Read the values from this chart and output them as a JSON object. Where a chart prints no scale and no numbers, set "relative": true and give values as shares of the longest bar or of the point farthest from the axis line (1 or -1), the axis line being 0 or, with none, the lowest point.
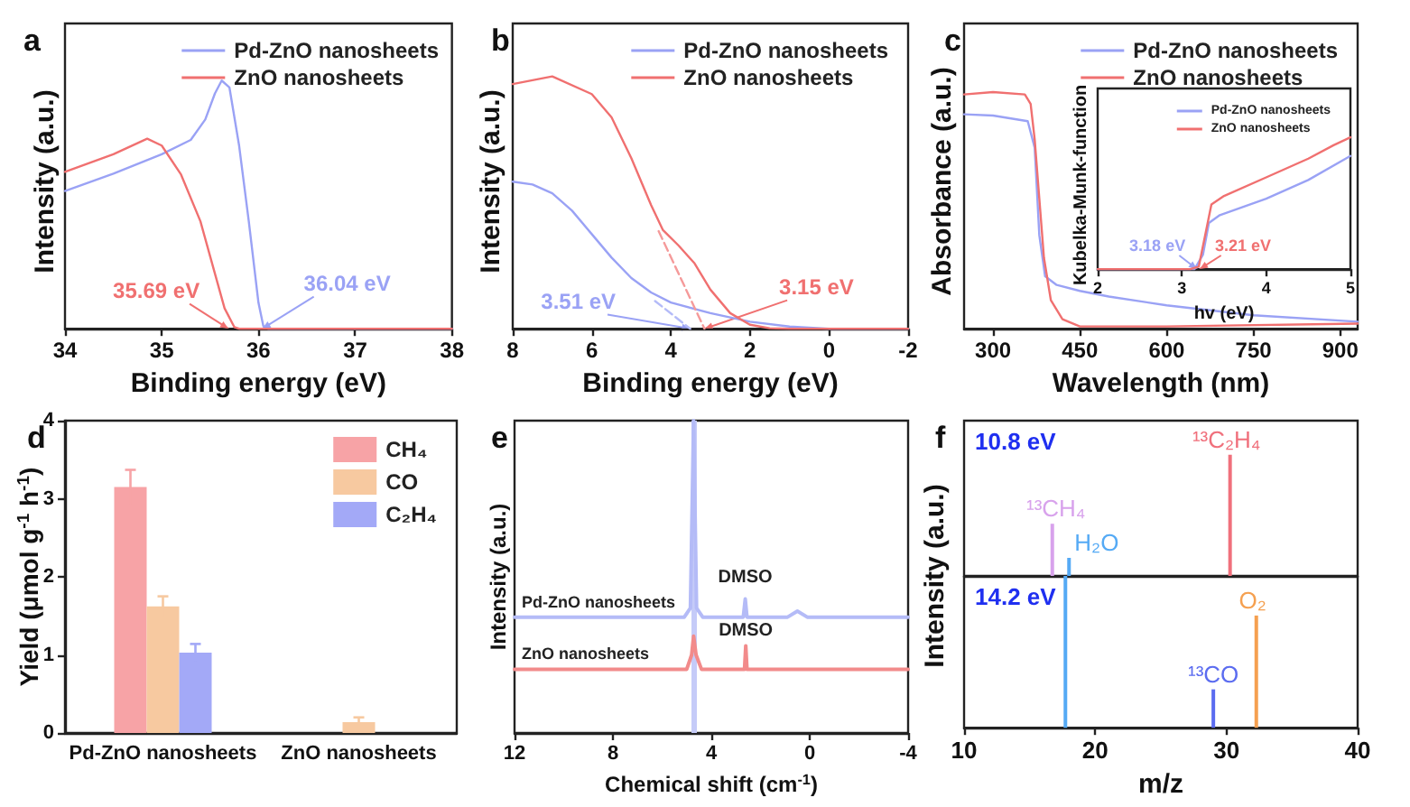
{
  "chart_data": [
    {
      "type": "line",
      "title": "a",
      "xlabel": "Binding energy (eV)",
      "ylabel": "Intensity (a.u.)",
      "relative": true,
      "xlim": [
        34,
        38
      ],
      "xticks": [
        34,
        35,
        36,
        37,
        38
      ],
      "legend": "top right",
      "marker": "none",
      "line_style": "solid",
      "series": [
        {
          "name": "Pd-ZnO nanosheets",
          "color": "#9aa2f5",
          "x": [
            34,
            34.5,
            35,
            35.3,
            35.45,
            35.55,
            35.62,
            35.7,
            35.8,
            35.9,
            36,
            36.05,
            36.1,
            38
          ],
          "values": [
            0.555,
            0.625,
            0.703,
            0.761,
            0.843,
            0.948,
            1,
            0.972,
            0.738,
            0.433,
            0.105,
            0.012,
            0,
            0
          ]
        },
        {
          "name": "ZnO nanosheets",
          "color": "#f07070",
          "x": [
            34,
            34.5,
            34.85,
            35,
            35.2,
            35.4,
            35.55,
            35.65,
            35.75,
            35.8,
            38
          ],
          "values": [
            0.632,
            0.703,
            0.766,
            0.738,
            0.621,
            0.433,
            0.222,
            0.082,
            0.007,
            0,
            0
          ]
        }
      ],
      "annotations": [
        {
          "text": "36.04 eV",
          "x": 36.04,
          "y": 0
        },
        {
          "text": "35.69 eV",
          "x": 35.69,
          "y": 0
        }
      ]
    },
    {
      "type": "line",
      "title": "b",
      "xlabel": "Binding energy (eV)",
      "ylabel": "Intensity (a.u.)",
      "relative": true,
      "xlim": [
        8,
        -2
      ],
      "xticks": [
        8,
        6,
        4,
        2,
        0,
        -2
      ],
      "legend": "top right",
      "marker": "none",
      "line_style": "solid",
      "series": [
        {
          "name": "Pd-ZnO nanosheets",
          "color": "#9aa2f5",
          "x": [
            8,
            7.5,
            7,
            6.5,
            6,
            5.5,
            5,
            4.5,
            4,
            3,
            2,
            1,
            0,
            -2
          ],
          "values": [
            0.583,
            0.572,
            0.537,
            0.468,
            0.375,
            0.282,
            0.201,
            0.144,
            0.104,
            0.062,
            0.028,
            0.009,
            0,
            0
          ]
        },
        {
          "name": "ZnO nanosheets",
          "color": "#f07070",
          "x": [
            8,
            7,
            6,
            5.5,
            5,
            4.5,
            4.2,
            3.8,
            3.4,
            3,
            2.5,
            2,
            1.5,
            1,
            -2
          ],
          "values": [
            0.97,
            1,
            0.93,
            0.838,
            0.676,
            0.49,
            0.391,
            0.329,
            0.259,
            0.155,
            0.062,
            0.016,
            0.002,
            0,
            0
          ]
        },
        {
          "color": "#b4bbf8",
          "line_style": "dashed",
          "x": [
            4.4,
            3.51
          ],
          "values": [
            0.11,
            0
          ]
        },
        {
          "color": "#f59a9a",
          "line_style": "dashed",
          "x": [
            4.31,
            3.15
          ],
          "values": [
            0.387,
            0
          ]
        }
      ],
      "annotations": [
        {
          "text": "3.51 eV",
          "x": 3.51,
          "y": 0
        },
        {
          "text": "3.15 eV",
          "x": 3.15,
          "y": 0
        }
      ]
    },
    {
      "type": "line",
      "title": "c",
      "xlabel": "Wavelength (nm)",
      "ylabel": "Absorbance (a.u.)",
      "relative": true,
      "xlim": [
        250,
        930
      ],
      "xticks": [
        300,
        450,
        600,
        750,
        900
      ],
      "legend": "top right",
      "marker": "none",
      "line_style": "solid",
      "series": [
        {
          "name": "Pd-ZnO nanosheets",
          "color": "#9aa2f5",
          "x": [
            250,
            300,
            360,
            372,
            380,
            390,
            410,
            450,
            500,
            600,
            750,
            930
          ],
          "values": [
            0.906,
            0.901,
            0.877,
            0.765,
            0.395,
            0.222,
            0.185,
            0.16,
            0.136,
            0.099,
            0.057,
            0.03
          ]
        },
        {
          "name": "ZnO nanosheets",
          "color": "#f07070",
          "x": [
            250,
            300,
            355,
            365,
            372,
            380,
            388,
            400,
            420,
            450,
            600,
            930
          ],
          "values": [
            0.99,
            1,
            0.99,
            0.95,
            0.8,
            0.55,
            0.3,
            0.12,
            0.04,
            0.01,
            0.01,
            0.022
          ]
        }
      ]
    },
    {
      "type": "line",
      "xlabel": "hv (eV)",
      "ylabel": "Kubelka-Munk-function",
      "relative": true,
      "xlim": [
        2,
        5
      ],
      "xticks": [
        2,
        3,
        4,
        5
      ],
      "legend": "top right",
      "marker": "none",
      "line_style": "solid",
      "series": [
        {
          "name": "Pd-ZnO nanosheets",
          "color": "#9aa2f5",
          "x": [
            2,
            3.15,
            3.25,
            3.32,
            3.45,
            4,
            4.5,
            5
          ],
          "values": [
            0,
            0,
            0.11,
            0.35,
            0.41,
            0.534,
            0.676,
            0.858
          ]
        },
        {
          "name": "ZnO nanosheets",
          "color": "#f07070",
          "x": [
            2,
            3.1,
            3.2,
            3.28,
            3.35,
            3.5,
            4,
            4.5,
            4.8,
            5
          ],
          "values": [
            0,
            0,
            0.02,
            0.27,
            0.49,
            0.555,
            0.696,
            0.838,
            0.94,
            1
          ]
        }
      ],
      "annotations": [
        {
          "text": "3.18 eV",
          "x": 3.18,
          "y": 0
        },
        {
          "text": "3.21 eV",
          "x": 3.21,
          "y": 0
        }
      ]
    },
    {
      "type": "bar",
      "title": "d",
      "ylabel": "Yield (μmol g$^{-1}$ h$^{-1}$)",
      "categories": [
        "Pd-ZnO nanosheets",
        "ZnO nanosheets"
      ],
      "ylim": [
        0,
        4
      ],
      "yticks": [
        0,
        1,
        2,
        3,
        4
      ],
      "legend": "top right",
      "series": [
        {
          "name": "CH₄",
          "color": "#f7a3a6",
          "values": [
            3.15,
            0
          ],
          "errors": [
            0.22,
            null
          ]
        },
        {
          "name": "CO",
          "color": "#f7c9a0",
          "values": [
            1.62,
            0.14
          ],
          "errors": [
            0.13,
            0.06
          ]
        },
        {
          "name": "C₂H₄",
          "color": "#a3a9f7",
          "values": [
            1.03,
            0
          ],
          "errors": [
            0.11,
            null
          ]
        }
      ]
    },
    {
      "type": "line",
      "title": "e",
      "xlabel": "Chemical shift (cm$^{-1}$)",
      "ylabel": "Intensity (a.u.)",
      "relative": true,
      "xlim": [
        12,
        -4
      ],
      "xticks": [
        12,
        8,
        4,
        0,
        -4
      ],
      "marker": "none",
      "line_style": "solid",
      "ref_lines": [
        {
          "axis": "x",
          "value": 4.72,
          "color": "#c5cbf8"
        }
      ],
      "series": [
        {
          "name": "Pd-ZnO nanosheets",
          "color": "#b4bbf7",
          "x": [
            12,
            5.1,
            4.85,
            4.72,
            4.6,
            4.35,
            2.7,
            2.62,
            2.55,
            0.9,
            0.5,
            0.1,
            -4
          ],
          "values": [
            0.371,
            0.371,
            0.4,
            1,
            0.4,
            0.371,
            0.371,
            0.429,
            0.371,
            0.371,
            0.39,
            0.371,
            0.371
          ]
        },
        {
          "name": "ZnO nanosheets",
          "color": "#f28b8b",
          "x": [
            12,
            5,
            4.8,
            4.72,
            4.62,
            4.4,
            2.65,
            2.6,
            2.55,
            -4
          ],
          "values": [
            0.204,
            0.204,
            0.25,
            0.31,
            0.25,
            0.204,
            0.204,
            0.279,
            0.204,
            0.204
          ]
        }
      ],
      "annotations": [
        {
          "text": "DMSO",
          "x": 2.62,
          "y": 0.429
        },
        {
          "text": "DMSO",
          "x": 2.6,
          "y": 0.279
        }
      ]
    },
    {
      "type": "bar",
      "title": "f",
      "ylabel": "Intensity (a.u.)",
      "relative": true,
      "xlim": [
        10,
        40
      ],
      "xticks": [
        10,
        20,
        30,
        40
      ],
      "tick_labels": false,
      "annotations": [
        "10.8 eV"
      ],
      "series": [
        {
          "name": "¹³CH₄",
          "color": "#d8a2ec",
          "x": [
            17
          ],
          "values": [
            0.43
          ]
        },
        {
          "name": "H₂O",
          "color": "#55aaf5",
          "x": [
            18
          ],
          "values": [
            0.149
          ]
        },
        {
          "name": "¹³C₂H₄",
          "color": "#f0707c",
          "x": [
            30
          ],
          "values": [
            1
          ]
        }
      ]
    },
    {
      "type": "bar",
      "xlabel": "m/z",
      "relative": true,
      "xlim": [
        10,
        40
      ],
      "xticks": [
        10,
        20,
        30,
        40
      ],
      "tick_labels": "x",
      "annotations": [
        "14.2 eV"
      ],
      "series": [
        {
          "color": "#55aaf5",
          "x": [
            18
          ],
          "values": [
            1
          ]
        },
        {
          "name": "¹³CO",
          "color": "#5b6cf0",
          "x": [
            29
          ],
          "values": [
            0.253
          ]
        },
        {
          "name": "O₂",
          "color": "#f5a050",
          "x": [
            32
          ],
          "values": [
            0.739
          ]
        }
      ]
    }
  ]
}
